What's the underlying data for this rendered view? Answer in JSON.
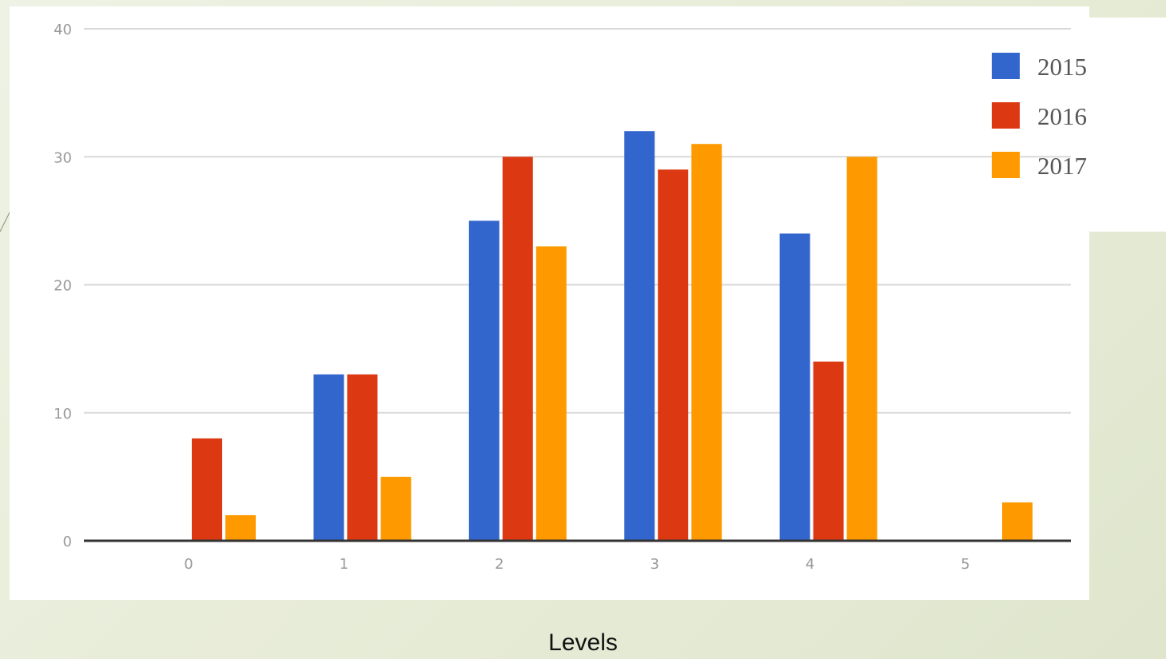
{
  "chart_data": {
    "type": "bar",
    "title": "",
    "xlabel": "Levels",
    "ylabel": "",
    "categories": [
      "0",
      "1",
      "2",
      "3",
      "4",
      "5"
    ],
    "series": [
      {
        "name": "2015",
        "color": "#3366cc",
        "values": [
          0,
          13,
          25,
          32,
          24,
          0
        ]
      },
      {
        "name": "2016",
        "color": "#dc3912",
        "values": [
          8,
          13,
          30,
          29,
          14,
          0
        ]
      },
      {
        "name": "2017",
        "color": "#ff9900",
        "values": [
          2,
          5,
          23,
          31,
          30,
          3
        ]
      }
    ],
    "yticks": [
      "0",
      "10",
      "20",
      "30",
      "40"
    ],
    "ylim": [
      0,
      40
    ],
    "grid": true,
    "legend_position": "top-right"
  }
}
